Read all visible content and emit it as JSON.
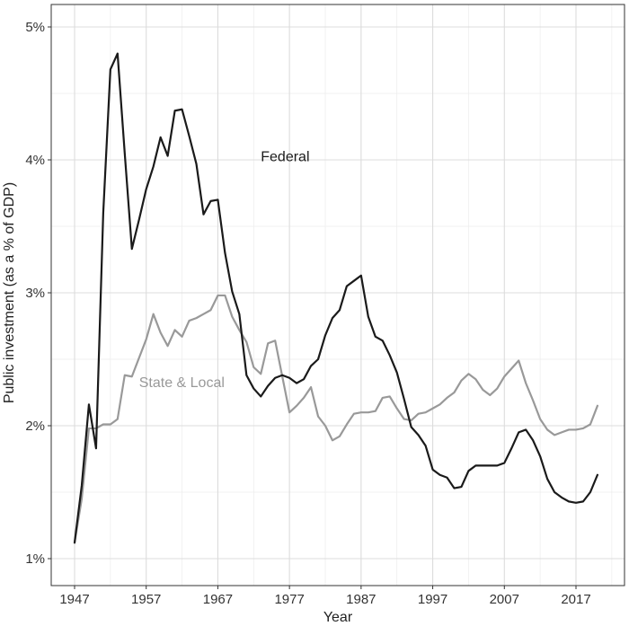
{
  "chart_data": {
    "type": "line",
    "title": "",
    "xlabel": "Year",
    "ylabel": "Public investment (as a % of GDP)",
    "xlim": [
      1947,
      2020
    ],
    "ylim": [
      1,
      5
    ],
    "x_ticks": [
      1947,
      1957,
      1967,
      1977,
      1987,
      1997,
      2007,
      2017
    ],
    "x_tick_labels": [
      "1947",
      "1957",
      "1967",
      "1977",
      "1987",
      "1997",
      "2007",
      "2017"
    ],
    "y_ticks": [
      1,
      2,
      3,
      4,
      5
    ],
    "y_tick_labels": [
      "1%",
      "2%",
      "3%",
      "4%",
      "5%"
    ],
    "grid": true,
    "x": [
      1947,
      1948,
      1949,
      1950,
      1951,
      1952,
      1953,
      1954,
      1955,
      1956,
      1957,
      1958,
      1959,
      1960,
      1961,
      1962,
      1963,
      1964,
      1965,
      1966,
      1967,
      1968,
      1969,
      1970,
      1971,
      1972,
      1973,
      1974,
      1975,
      1976,
      1977,
      1978,
      1979,
      1980,
      1981,
      1982,
      1983,
      1984,
      1985,
      1986,
      1987,
      1988,
      1989,
      1990,
      1991,
      1992,
      1993,
      1994,
      1995,
      1996,
      1997,
      1998,
      1999,
      2000,
      2001,
      2002,
      2003,
      2004,
      2005,
      2006,
      2007,
      2008,
      2009,
      2010,
      2011,
      2012,
      2013,
      2014,
      2015,
      2016,
      2017,
      2018,
      2019,
      2020
    ],
    "series": [
      {
        "name": "Federal",
        "color": "#1a1a1a",
        "values": [
          1.12,
          1.55,
          2.16,
          1.83,
          3.6,
          4.68,
          4.8,
          4.05,
          3.33,
          3.55,
          3.78,
          3.95,
          4.17,
          4.03,
          4.37,
          4.38,
          4.18,
          3.97,
          3.59,
          3.69,
          3.7,
          3.3,
          3.01,
          2.84,
          2.38,
          2.28,
          2.22,
          2.3,
          2.36,
          2.38,
          2.36,
          2.32,
          2.35,
          2.45,
          2.5,
          2.68,
          2.81,
          2.87,
          3.05,
          3.09,
          3.13,
          2.82,
          2.67,
          2.64,
          2.53,
          2.4,
          2.2,
          1.99,
          1.93,
          1.85,
          1.67,
          1.63,
          1.61,
          1.53,
          1.54,
          1.66,
          1.7,
          1.7,
          1.7,
          1.7,
          1.72,
          1.83,
          1.95,
          1.97,
          1.89,
          1.77,
          1.6,
          1.5,
          1.46,
          1.43,
          1.42,
          1.43,
          1.5,
          1.63
        ],
        "label_x": 1973.0,
        "label_y": 3.99
      },
      {
        "name": "State & Local",
        "color": "#999999",
        "values": [
          1.12,
          1.45,
          1.98,
          1.98,
          2.01,
          2.01,
          2.05,
          2.38,
          2.37,
          2.51,
          2.65,
          2.84,
          2.7,
          2.6,
          2.72,
          2.67,
          2.79,
          2.81,
          2.84,
          2.87,
          2.98,
          2.98,
          2.82,
          2.72,
          2.63,
          2.44,
          2.39,
          2.62,
          2.64,
          2.37,
          2.1,
          2.15,
          2.21,
          2.29,
          2.07,
          2.0,
          1.89,
          1.92,
          2.01,
          2.09,
          2.1,
          2.1,
          2.11,
          2.21,
          2.22,
          2.13,
          2.05,
          2.04,
          2.09,
          2.1,
          2.13,
          2.16,
          2.21,
          2.25,
          2.34,
          2.39,
          2.35,
          2.27,
          2.23,
          2.28,
          2.37,
          2.43,
          2.49,
          2.32,
          2.19,
          2.05,
          1.97,
          1.93,
          1.95,
          1.97,
          1.97,
          1.98,
          2.01,
          2.15
        ],
        "label_x": 1956.0,
        "label_y": 2.29
      }
    ]
  }
}
